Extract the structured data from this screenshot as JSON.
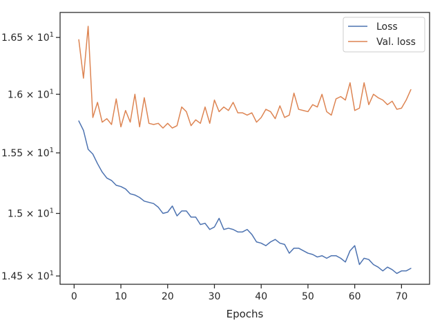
{
  "chart_data": {
    "type": "line",
    "title": "",
    "xlabel": "Epochs",
    "ylabel": "",
    "xlim": [
      -3,
      76
    ],
    "ylim": [
      14.435,
      16.725
    ],
    "log_scale_y": true,
    "grid": false,
    "legend_position": "top-right",
    "x_ticks": [
      0,
      10,
      20,
      30,
      40,
      50,
      60,
      70
    ],
    "x_tick_labels": [
      "0",
      "10",
      "20",
      "30",
      "40",
      "50",
      "60",
      "70"
    ],
    "y_ticks": [
      14.5,
      15.0,
      15.5,
      16.0,
      16.5
    ],
    "y_tick_labels": [
      {
        "base": "1.45 × 10",
        "exp": "1"
      },
      {
        "base": "1.5 × 10",
        "exp": "1"
      },
      {
        "base": "1.55 × 10",
        "exp": "1"
      },
      {
        "base": "1.6 × 10",
        "exp": "1"
      },
      {
        "base": "1.65 × 10",
        "exp": "1"
      }
    ],
    "x": [
      1,
      2,
      3,
      4,
      5,
      6,
      7,
      8,
      9,
      10,
      11,
      12,
      13,
      14,
      15,
      16,
      17,
      18,
      19,
      20,
      21,
      22,
      23,
      24,
      25,
      26,
      27,
      28,
      29,
      30,
      31,
      32,
      33,
      34,
      35,
      36,
      37,
      38,
      39,
      40,
      41,
      42,
      43,
      44,
      45,
      46,
      47,
      48,
      49,
      50,
      51,
      52,
      53,
      54,
      55,
      56,
      57,
      58,
      59,
      60,
      61,
      62,
      63,
      64,
      65,
      66,
      67,
      68,
      69,
      70,
      71,
      72
    ],
    "series": [
      {
        "name": "Loss",
        "color": "#4c72b0",
        "values": [
          15.77,
          15.69,
          15.53,
          15.49,
          15.41,
          15.34,
          15.29,
          15.27,
          15.23,
          15.22,
          15.2,
          15.16,
          15.15,
          15.13,
          15.1,
          15.09,
          15.08,
          15.05,
          15.0,
          15.01,
          15.06,
          14.98,
          15.02,
          15.02,
          14.97,
          14.97,
          14.91,
          14.92,
          14.87,
          14.89,
          14.96,
          14.87,
          14.88,
          14.87,
          14.85,
          14.85,
          14.87,
          14.83,
          14.77,
          14.76,
          14.74,
          14.77,
          14.79,
          14.76,
          14.75,
          14.68,
          14.72,
          14.72,
          14.7,
          14.68,
          14.67,
          14.65,
          14.66,
          14.64,
          14.66,
          14.66,
          14.64,
          14.61,
          14.7,
          14.74,
          14.59,
          14.64,
          14.63,
          14.59,
          14.57,
          14.54,
          14.57,
          14.55,
          14.52,
          14.54,
          14.54,
          14.56
        ]
      },
      {
        "name": "Val. loss",
        "color": "#dd8452",
        "values": [
          16.48,
          16.14,
          16.6,
          15.8,
          15.93,
          15.76,
          15.79,
          15.74,
          15.96,
          15.72,
          15.86,
          15.76,
          16.0,
          15.72,
          15.97,
          15.75,
          15.74,
          15.75,
          15.71,
          15.75,
          15.71,
          15.73,
          15.89,
          15.85,
          15.73,
          15.78,
          15.75,
          15.89,
          15.75,
          15.95,
          15.85,
          15.89,
          15.86,
          15.93,
          15.84,
          15.84,
          15.82,
          15.84,
          15.76,
          15.8,
          15.87,
          15.85,
          15.79,
          15.9,
          15.8,
          15.82,
          16.01,
          15.87,
          15.86,
          15.85,
          15.91,
          15.89,
          16.0,
          15.85,
          15.82,
          15.96,
          15.98,
          15.95,
          16.1,
          15.86,
          15.88,
          16.1,
          15.91,
          16.0,
          15.97,
          15.95,
          15.91,
          15.94,
          15.87,
          15.88,
          15.95,
          16.04
        ]
      }
    ]
  }
}
